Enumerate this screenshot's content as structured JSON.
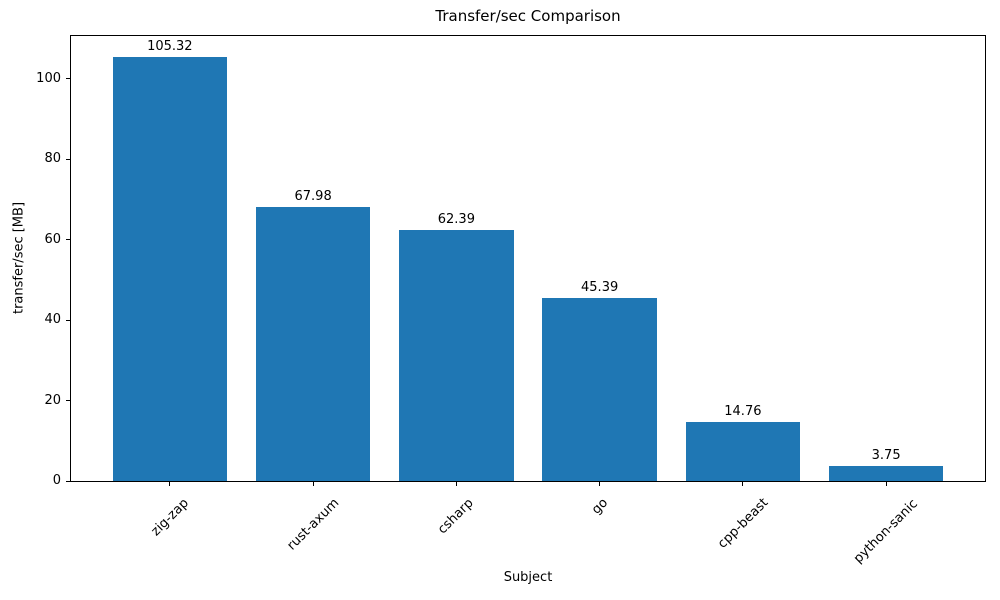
{
  "chart_data": {
    "type": "bar",
    "title": "Transfer/sec Comparison",
    "xlabel": "Subject",
    "ylabel": "transfer/sec [MB]",
    "categories": [
      "zig-zap",
      "rust-axum",
      "csharp",
      "go",
      "cpp-beast",
      "python-sanic"
    ],
    "values": [
      105.32,
      67.98,
      62.39,
      45.39,
      14.76,
      3.75
    ],
    "bar_labels": [
      "105.32",
      "67.98",
      "62.39",
      "45.39",
      "14.76",
      "3.75"
    ],
    "ytick_values": [
      0,
      20,
      40,
      60,
      80,
      100
    ],
    "ytick_labels": [
      "0",
      "20",
      "40",
      "60",
      "80",
      "100"
    ],
    "ylim": [
      0,
      110.59
    ],
    "xtick_rotation_deg": 45,
    "grid": false,
    "legend_position": "none",
    "bar_color": "#1f77b4",
    "axis_color": "#000000",
    "text_color": "#000000",
    "background_color": "#ffffff"
  }
}
